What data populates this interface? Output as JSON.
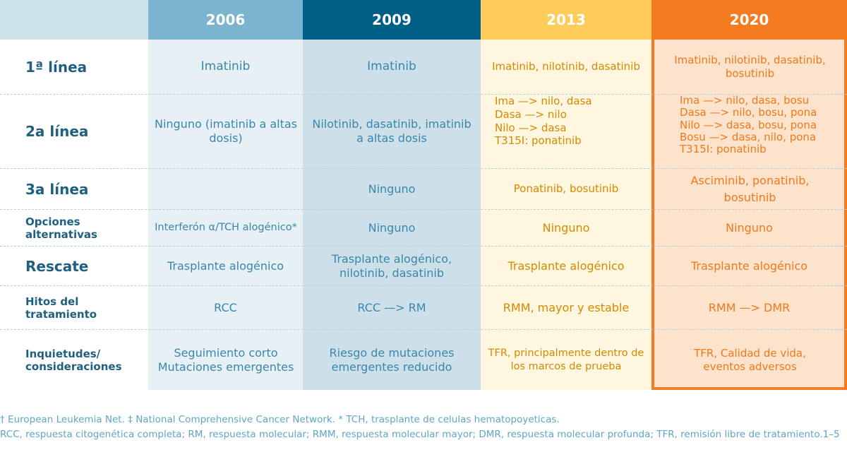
{
  "headers": {
    "col_2006": "2006",
    "col_2009": "2009",
    "col_2013": "2013",
    "col_2020": "2020"
  },
  "rows": {
    "r1": {
      "label": "1ª línea",
      "c2006": "Imatinib",
      "c2009": "Imatinib",
      "c2013": "Imatinib, nilotinib, dasatinib",
      "c2020": "Imatinib, nilotinib, dasatinib, bosutinib"
    },
    "r2": {
      "label": "2a línea",
      "c2006": "Ninguno (imatinib a altas dosis)",
      "c2009": "Nilotinib, dasatinib, imatinib a altas dosis",
      "c2013": [
        "Ima —> nilo, dasa",
        "Dasa —> nilo",
        "Nilo —> dasa",
        "T315I: ponatinib"
      ],
      "c2020": [
        "Ima —> nilo, dasa, bosu",
        "Dasa —> nilo, bosu, pona",
        "Nilo —> dasa, bosu, pona",
        "Bosu —> dasa, nilo, pona",
        "T315I: ponatinib"
      ]
    },
    "r3": {
      "label": "3a línea",
      "c2006": "",
      "c2009": "Ninguno",
      "c2013": "Ponatinib, bosutinib",
      "c2020": "Asciminib, ponatinib, bosutinib"
    },
    "r4": {
      "label": "Opciones alternativas",
      "c2006": "Interferón α/TCH alogénico*",
      "c2009": "Ninguno",
      "c2013": "Ninguno",
      "c2020": "Ninguno"
    },
    "r5": {
      "label": "Rescate",
      "c2006": "Trasplante alogénico",
      "c2009": "Trasplante alogénico, nilotinib, dasatinib",
      "c2013": "Trasplante alogénico",
      "c2020": "Trasplante alogénico"
    },
    "r6": {
      "label": "Hitos del tratamiento",
      "c2006": "RCC",
      "c2009": "RCC —> RM",
      "c2013": "RMM, mayor y estable",
      "c2020": "RMM —> DMR"
    },
    "r7": {
      "label": "Inquietudes/ consideraciones",
      "c2006": "Seguimiento corto Mutaciones emergentes",
      "c2009": "Riesgo de mutaciones emergentes reducido",
      "c2013": "TFR, principalmente dentro de los marcos de prueba",
      "c2020": "TFR, Calidad de vida, eventos adversos"
    }
  },
  "footnotes": {
    "line1": "† European Leukemia Net. ‡ National Comprehensive Cancer Network. * TCH, trasplante de celulas hematopoyeticas.",
    "line2": "RCC, respuesta citogenética completa; RM, respuesta molecular; RMM, respuesta molecular mayor; DMR, respuesta molecular profunda; TFR, remisión libre de tratamiento.1–5"
  },
  "colors": {
    "h2006": "#7ab4cf",
    "h2009": "#005f87",
    "h2013": "#fdcc5b",
    "h2020": "#f47b20"
  }
}
